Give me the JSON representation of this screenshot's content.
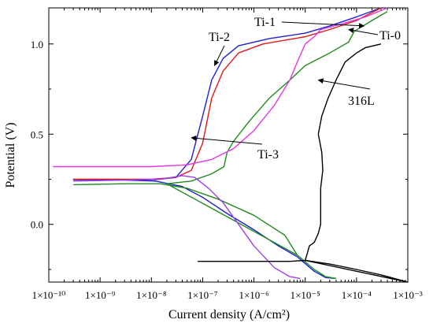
{
  "chart_data": {
    "type": "line",
    "title": "",
    "xlabel": "Current density (A/cm²)",
    "ylabel": "Potential (V)",
    "xscale": "log",
    "xlim": [
      1e-10,
      0.001
    ],
    "ylim": [
      -0.32,
      1.2
    ],
    "grid": false,
    "legend": "none (curves labelled with arrow annotations)",
    "x_ticks": [
      {
        "value": 1e-10,
        "label": "1×10⁻¹⁰"
      },
      {
        "value": 1e-09,
        "label": "1×10⁻⁹"
      },
      {
        "value": 1e-08,
        "label": "1×10⁻⁸"
      },
      {
        "value": 1e-07,
        "label": "1×10⁻⁷"
      },
      {
        "value": 1e-06,
        "label": "1×10⁻⁶"
      },
      {
        "value": 1e-05,
        "label": "1×10⁻⁵"
      },
      {
        "value": 0.0001,
        "label": "1×10⁻⁴"
      },
      {
        "value": 0.001,
        "label": "1×10⁻³"
      }
    ],
    "y_ticks": [
      {
        "value": 0.0,
        "label": "0.0"
      },
      {
        "value": 0.5,
        "label": "0.5"
      },
      {
        "value": 1.0,
        "label": "1.0"
      }
    ],
    "series": [
      {
        "name": "Ti-1",
        "color": "#1f1fd6",
        "points": [
          [
            7e-06,
            -0.18
          ],
          [
            3e-06,
            -0.12
          ],
          [
            1e-06,
            -0.03
          ],
          [
            3e-07,
            0.06
          ],
          [
            1e-07,
            0.15
          ],
          [
            4e-08,
            0.21
          ],
          [
            1.2e-08,
            0.24
          ],
          [
            3e-09,
            0.245
          ],
          [
            3e-10,
            0.248
          ],
          [
            1.2e-08,
            0.248
          ],
          [
            3e-08,
            0.26
          ],
          [
            6e-08,
            0.36
          ],
          [
            1e-07,
            0.6
          ],
          [
            1.5e-07,
            0.8
          ],
          [
            2.5e-07,
            0.92
          ],
          [
            5e-07,
            0.99
          ],
          [
            2e-06,
            1.03
          ],
          [
            1e-05,
            1.06
          ],
          [
            3e-05,
            1.1
          ],
          [
            0.0001,
            1.15
          ],
          [
            0.0003,
            1.2
          ]
        ],
        "cathodic_tail": [
          [
            7e-06,
            -0.18
          ],
          [
            1.5e-05,
            -0.26
          ],
          [
            2.5e-05,
            -0.295
          ],
          [
            4e-05,
            -0.3
          ]
        ]
      },
      {
        "name": "Ti-2",
        "color": "#e01818",
        "points": [
          [
            3e-10,
            0.25
          ],
          [
            1e-08,
            0.25
          ],
          [
            3e-08,
            0.26
          ],
          [
            6e-08,
            0.3
          ],
          [
            1e-07,
            0.45
          ],
          [
            1.5e-07,
            0.7
          ],
          [
            2.5e-07,
            0.85
          ],
          [
            5e-07,
            0.95
          ],
          [
            1.5e-06,
            1.0
          ],
          [
            1e-05,
            1.04
          ],
          [
            3e-05,
            1.08
          ],
          [
            0.0001,
            1.13
          ],
          [
            0.0003,
            1.2
          ]
        ]
      },
      {
        "name": "Ti-0",
        "color": "#1f8c1f",
        "points": [
          [
            3e-10,
            0.22
          ],
          [
            3e-09,
            0.225
          ],
          [
            1.5e-08,
            0.225
          ],
          [
            5e-08,
            0.2
          ],
          [
            2e-07,
            0.14
          ],
          [
            1e-06,
            0.05
          ],
          [
            4e-06,
            -0.06
          ],
          [
            7e-06,
            -0.17
          ],
          [
            2e-08,
            0.225
          ],
          [
            6e-08,
            0.24
          ],
          [
            1.5e-07,
            0.28
          ],
          [
            2.6e-07,
            0.32
          ],
          [
            3e-07,
            0.4
          ],
          [
            4e-07,
            0.46
          ],
          [
            8e-07,
            0.57
          ],
          [
            2e-06,
            0.7
          ],
          [
            5e-06,
            0.8
          ],
          [
            1e-05,
            0.88
          ],
          [
            3e-05,
            0.95
          ],
          [
            7e-05,
            1.01
          ],
          [
            9e-05,
            1.07
          ],
          [
            0.0002,
            1.13
          ],
          [
            0.0004,
            1.18
          ]
        ],
        "cathodic_tail": [
          [
            7e-06,
            -0.17
          ],
          [
            1.5e-05,
            -0.25
          ],
          [
            2.5e-05,
            -0.29
          ],
          [
            4e-05,
            -0.3
          ]
        ]
      },
      {
        "name": "Ti-3",
        "color": "#e636e6",
        "points": [
          [
            1.2e-10,
            0.32
          ],
          [
            1e-09,
            0.32
          ],
          [
            1e-08,
            0.32
          ],
          [
            5e-08,
            0.33
          ],
          [
            1.5e-07,
            0.36
          ],
          [
            4e-07,
            0.42
          ],
          [
            1e-06,
            0.52
          ],
          [
            2.5e-06,
            0.66
          ],
          [
            5e-06,
            0.8
          ],
          [
            7e-06,
            0.9
          ],
          [
            1e-05,
            1.0
          ],
          [
            1.5e-05,
            1.04
          ],
          [
            2e-05,
            1.08
          ],
          [
            5e-05,
            1.11
          ],
          [
            0.00015,
            1.15
          ],
          [
            0.0004,
            1.2
          ]
        ]
      },
      {
        "name": "",
        "color": "#9b40e8",
        "points": [
          [
            3e-10,
            0.24
          ],
          [
            3e-09,
            0.245
          ],
          [
            1.5e-08,
            0.25
          ],
          [
            4e-08,
            0.27
          ],
          [
            7e-08,
            0.26
          ],
          [
            1.3e-07,
            0.2
          ],
          [
            2.5e-07,
            0.12
          ],
          [
            5e-07,
            0.0
          ],
          [
            1e-06,
            -0.12
          ],
          [
            2.5e-06,
            -0.24
          ],
          [
            5e-06,
            -0.29
          ],
          [
            8e-06,
            -0.3
          ]
        ]
      },
      {
        "name": "316L",
        "color": "#000000",
        "points": [
          [
            8e-08,
            -0.205
          ],
          [
            1e-06,
            -0.205
          ],
          [
            5e-06,
            -0.205
          ],
          [
            1e-05,
            -0.2
          ],
          [
            3e-05,
            -0.22
          ],
          [
            0.0001,
            -0.25
          ],
          [
            0.0003,
            -0.28
          ],
          [
            0.001,
            -0.32
          ],
          [
            1e-05,
            -0.2
          ],
          [
            1.1e-05,
            -0.16
          ],
          [
            1.2e-05,
            -0.12
          ],
          [
            1.5e-05,
            -0.1
          ],
          [
            1.8e-05,
            -0.05
          ],
          [
            2e-05,
            0.0
          ],
          [
            2e-05,
            0.1
          ],
          [
            2e-05,
            0.2
          ],
          [
            2.2e-05,
            0.3
          ],
          [
            2.1e-05,
            0.4
          ],
          [
            1.8e-05,
            0.5
          ],
          [
            2.1e-05,
            0.6
          ],
          [
            2.8e-05,
            0.7
          ],
          [
            4e-05,
            0.8
          ],
          [
            6e-05,
            0.9
          ],
          [
            0.0001,
            0.95
          ],
          [
            0.00015,
            0.98
          ],
          [
            0.0003,
            1.0
          ]
        ]
      }
    ],
    "annotations": [
      {
        "text": "Ti-1",
        "target": [
          0.00014,
          1.1
        ]
      },
      {
        "text": "Ti-2",
        "target": [
          1.7e-07,
          0.88
        ]
      },
      {
        "text": "Ti-0",
        "target": [
          7e-05,
          1.08
        ]
      },
      {
        "text": "316L",
        "target": [
          1.8e-05,
          0.8
        ]
      },
      {
        "text": "Ti-3",
        "target": [
          6e-08,
          0.48
        ]
      }
    ]
  }
}
